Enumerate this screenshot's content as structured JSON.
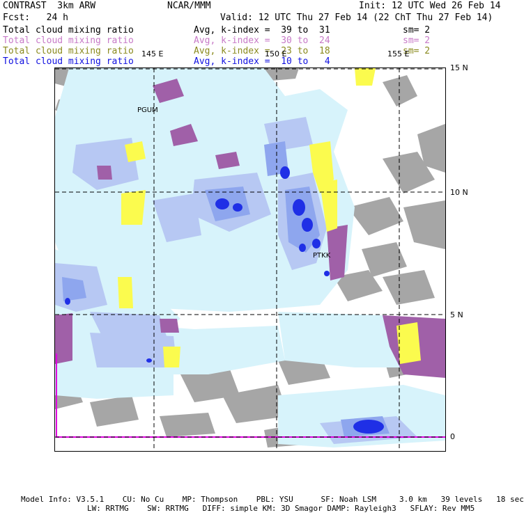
{
  "header": {
    "program": "CONTRAST",
    "resolution": "3km ARW",
    "center": "NCAR/MMM",
    "init": "Init: 12 UTC Wed 26 Feb 14",
    "fcst_label": "Fcst:",
    "fcst_value": "24 h",
    "valid": "Valid: 12 UTC Thu 27 Feb 14 (22 ChT Thu 27 Feb 14)"
  },
  "legend": [
    {
      "field": "Total cloud mixing ratio",
      "index": "Avg, k-index =  39 to  31",
      "sm": "sm= 2",
      "color": "#000000"
    },
    {
      "field": "Total cloud mixing ratio",
      "index": "Avg, k-index =  30 to  24",
      "sm": "sm= 2",
      "color": "#c77ac7"
    },
    {
      "field": "Total cloud mixing ratio",
      "index": "Avg, k-index =  23 to  18",
      "sm": "sm= 2",
      "color": "#8a8a1e"
    },
    {
      "field": "Total cloud mixing ratio",
      "index": "Avg, k-index =  10 to   4",
      "sm": "",
      "color": "#1010e0"
    }
  ],
  "grid": {
    "lon_labels": [
      "145 E",
      "150 E",
      "155 E"
    ],
    "lat_labels": [
      "15 N",
      "10 N",
      "5 N",
      "0"
    ]
  },
  "stations": [
    "PGUM",
    "PTKK"
  ],
  "colors": {
    "gray": "#a6a6a6",
    "light_cyan": "#d7f3fb",
    "light_blue": "#b7c8f3",
    "mid_blue": "#8ea6ee",
    "dark_blue": "#1f2fe6",
    "purple": "#a060a8",
    "yellow": "#fbfb4e",
    "magenta": "#e000e0"
  },
  "footer": {
    "line1": "Model Info: V3.5.1    CU: No Cu    MP: Thompson    PBL: YSU      SF: Noah LSM     3.0 km   39 levels   18 sec",
    "line2": "LW: RRTMG    SW: RRTMG   DIFF: simple KM: 3D Smagor DAMP: Rayleigh3   SFLAY: Rev MM5"
  }
}
